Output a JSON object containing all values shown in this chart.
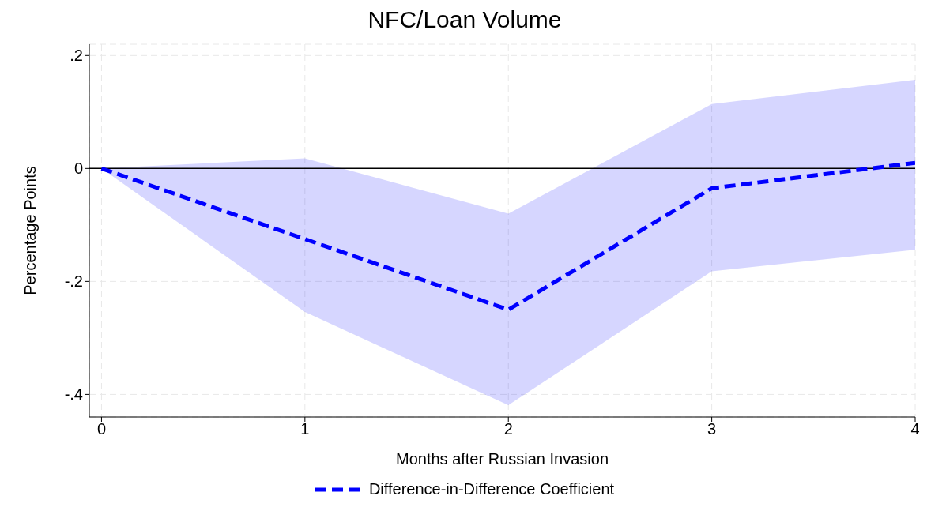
{
  "chart_data": {
    "type": "line",
    "title": "NFC/Loan Volume",
    "xlabel": "Months after Russian Invasion",
    "ylabel": "Percentage Points",
    "x": [
      0,
      1,
      2,
      3,
      4
    ],
    "series": [
      {
        "name": "Difference-in-Difference Coefficient",
        "color": "#0000ff",
        "values": [
          0,
          -0.125,
          -0.25,
          -0.035,
          0.01
        ],
        "lower": [
          0,
          -0.254,
          -0.419,
          -0.182,
          -0.144
        ],
        "upper": [
          0,
          0.018,
          -0.08,
          0.114,
          0.157
        ]
      }
    ],
    "xlim": [
      -0.06,
      4
    ],
    "xticks": [
      0,
      1,
      2,
      3,
      4
    ],
    "ylim": [
      -0.44,
      0.22
    ],
    "yticks": [
      {
        "value": -0.4,
        "label": "-.4"
      },
      {
        "value": -0.2,
        "label": "-.2"
      },
      0,
      {
        "value": 0.2,
        "label": ".2"
      }
    ],
    "ref_lines": [
      {
        "axis": "y",
        "value": 0,
        "color": "#000000",
        "line_style": "solid"
      }
    ],
    "grid": true,
    "legend": "bottom",
    "line_style": "dashed",
    "marker": "none"
  }
}
